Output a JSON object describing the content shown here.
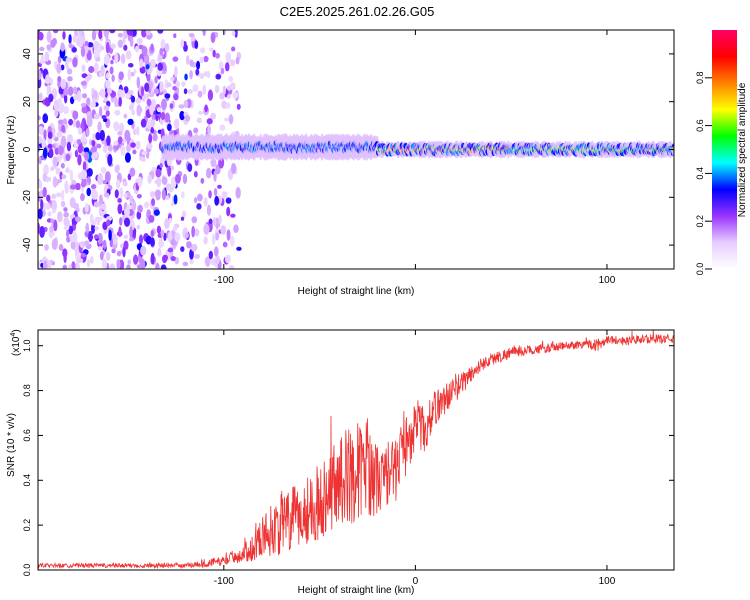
{
  "figure_title": "C2E5.2025.261.02.26.G05",
  "chart_data": [
    {
      "type": "heatmap",
      "title": "C2E5.2025.261.02.26.G05",
      "xlabel": "Height of straight line (km)",
      "ylabel": "Frequency (Hz)",
      "xlim": [
        -197,
        135
      ],
      "ylim": [
        -50,
        50
      ],
      "x_ticks": [
        -100,
        0,
        100
      ],
      "x_tick_labels": [
        "-100",
        "",
        "100"
      ],
      "y_ticks": [
        -40,
        -20,
        0,
        20,
        40
      ],
      "y_tick_labels": [
        "-40",
        "-20",
        "0",
        "20",
        "40"
      ],
      "colorbar": {
        "label": "Normalized spectral amplitude",
        "range": [
          0,
          1
        ],
        "ticks": [
          0.0,
          0.2,
          0.4,
          0.6,
          0.8
        ],
        "tick_labels": [
          "0.0",
          "0.2",
          "0.4",
          "0.6",
          "0.8"
        ],
        "colormap": [
          "#ffffff",
          "#e6ccff",
          "#9933ff",
          "#0000ff",
          "#00ffff",
          "#00ff00",
          "#ffff00",
          "#ff8000",
          "#ff0000",
          "#ff0066"
        ]
      },
      "noise_region_km": [
        -197,
        -92
      ],
      "band_segments": [
        {
          "x_start": -132,
          "x_end": -20,
          "center_hz": 1,
          "amplitude": 0.45
        },
        {
          "x_start": -20,
          "x_end": 50,
          "center_hz": 0,
          "amplitude": 0.95
        },
        {
          "x_start": 50,
          "x_end": 135,
          "center_hz": 0,
          "amplitude": 0.75
        }
      ]
    },
    {
      "type": "line",
      "title": "",
      "xlabel": "Height of straight line (km)",
      "ylabel": "SNR (10 * v/v)",
      "y_scale_label": "(x10",
      "y_scale_exp": "4",
      "xlim": [
        -197,
        135
      ],
      "ylim": [
        0,
        1.07
      ],
      "x_ticks": [
        -100,
        0,
        100
      ],
      "x_tick_labels": [
        "-100",
        "0",
        "100"
      ],
      "y_ticks": [
        0.0,
        0.2,
        0.4,
        0.6,
        0.8,
        1.0
      ],
      "y_tick_labels": [
        "0.0",
        "0.2",
        "0.4",
        "0.6",
        "0.8",
        "1.0"
      ],
      "series": [
        {
          "name": "SNR",
          "color": "#ee3333",
          "x": [
            -197,
            -180,
            -160,
            -140,
            -120,
            -110,
            -100,
            -95,
            -90,
            -85,
            -80,
            -75,
            -70,
            -65,
            -60,
            -55,
            -50,
            -45,
            -40,
            -35,
            -30,
            -25,
            -20,
            -15,
            -10,
            -5,
            0,
            5,
            10,
            15,
            20,
            25,
            30,
            35,
            40,
            50,
            60,
            70,
            80,
            90,
            95,
            100,
            110,
            120,
            135
          ],
          "y": [
            0.02,
            0.02,
            0.02,
            0.02,
            0.02,
            0.03,
            0.04,
            0.06,
            0.07,
            0.1,
            0.15,
            0.18,
            0.2,
            0.22,
            0.24,
            0.28,
            0.3,
            0.36,
            0.4,
            0.42,
            0.44,
            0.46,
            0.4,
            0.42,
            0.45,
            0.55,
            0.66,
            0.62,
            0.72,
            0.76,
            0.8,
            0.84,
            0.88,
            0.92,
            0.94,
            0.97,
            0.98,
            0.99,
            1.0,
            1.01,
            1.0,
            1.03,
            1.02,
            1.03,
            1.03
          ],
          "noise": [
            0.01,
            0.01,
            0.01,
            0.01,
            0.01,
            0.02,
            0.02,
            0.03,
            0.04,
            0.06,
            0.09,
            0.12,
            0.14,
            0.15,
            0.15,
            0.16,
            0.17,
            0.19,
            0.2,
            0.22,
            0.22,
            0.22,
            0.16,
            0.14,
            0.14,
            0.14,
            0.12,
            0.1,
            0.08,
            0.07,
            0.06,
            0.05,
            0.04,
            0.03,
            0.03,
            0.025,
            0.02,
            0.02,
            0.02,
            0.02,
            0.03,
            0.02,
            0.02,
            0.02,
            0.02
          ]
        }
      ]
    }
  ]
}
